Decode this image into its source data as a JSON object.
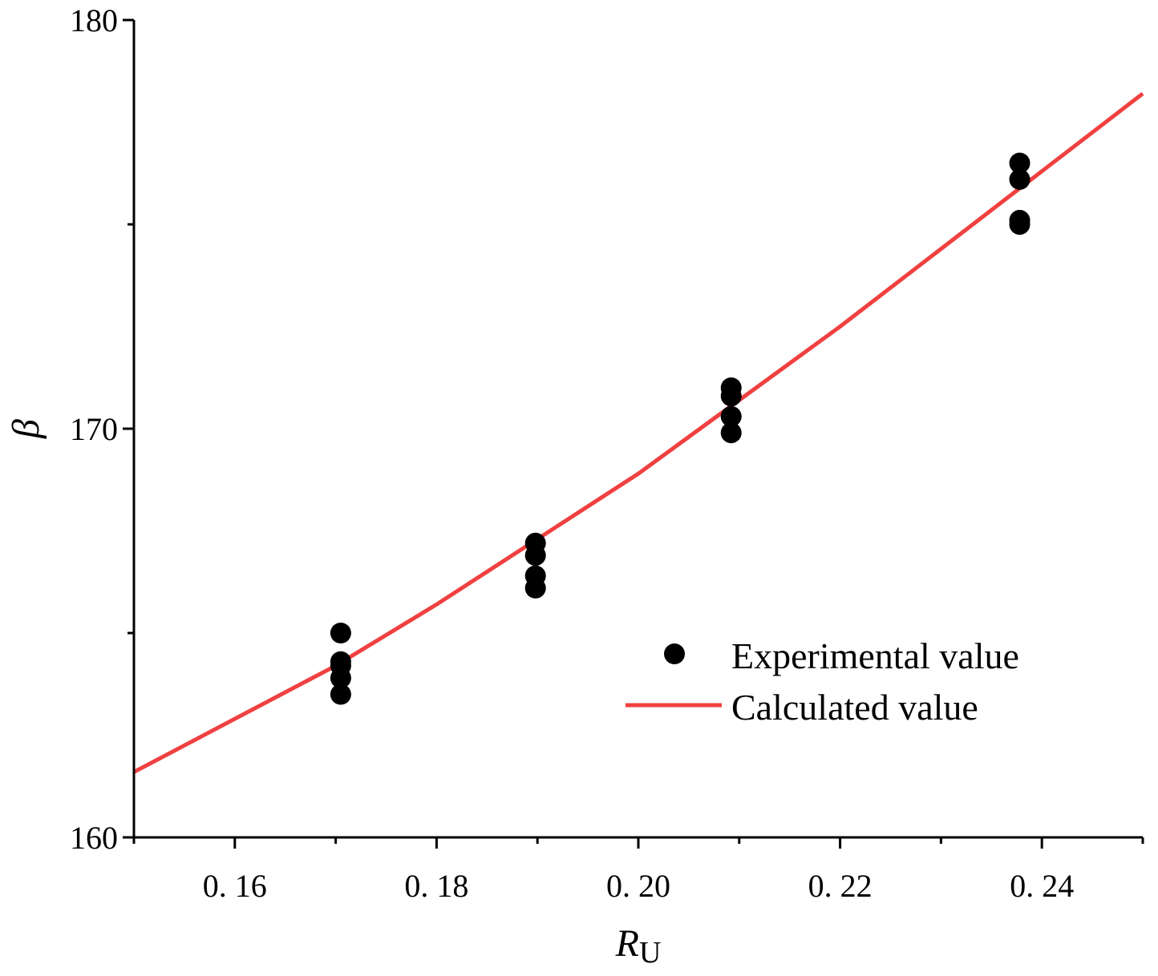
{
  "chart_data": {
    "type": "scatter",
    "title": "",
    "xlabel": "R",
    "xlabel_subscript": "U",
    "ylabel": "β",
    "xlim": [
      0.15,
      0.25
    ],
    "ylim": [
      160,
      180
    ],
    "x_ticks": [
      0.16,
      0.18,
      0.2,
      0.22,
      0.24
    ],
    "x_tick_labels": [
      "0. 16",
      "0. 18",
      "0. 20",
      "0. 22",
      "0. 24"
    ],
    "x_minor_ticks": [
      0.15,
      0.17,
      0.19,
      0.21,
      0.23,
      0.25
    ],
    "y_ticks": [
      160,
      170,
      180
    ],
    "y_tick_labels": [
      "160",
      "170",
      "180"
    ],
    "y_minor_ticks": [
      165,
      175
    ],
    "grid": false,
    "legend_position": "bottom-right",
    "series": [
      {
        "name": "Experimental value",
        "kind": "scatter",
        "color": "#000000",
        "points": [
          {
            "x": 0.1705,
            "y": 165.0
          },
          {
            "x": 0.1705,
            "y": 164.3
          },
          {
            "x": 0.1705,
            "y": 164.2
          },
          {
            "x": 0.1705,
            "y": 163.9
          },
          {
            "x": 0.1705,
            "y": 163.5
          },
          {
            "x": 0.1898,
            "y": 167.2
          },
          {
            "x": 0.1898,
            "y": 166.9
          },
          {
            "x": 0.1898,
            "y": 166.4
          },
          {
            "x": 0.1898,
            "y": 166.1
          },
          {
            "x": 0.2092,
            "y": 171.0
          },
          {
            "x": 0.2092,
            "y": 170.8
          },
          {
            "x": 0.2092,
            "y": 170.3
          },
          {
            "x": 0.2092,
            "y": 169.9
          },
          {
            "x": 0.2378,
            "y": 176.5
          },
          {
            "x": 0.2378,
            "y": 176.1
          },
          {
            "x": 0.2378,
            "y": 175.1
          },
          {
            "x": 0.2378,
            "y": 175.0
          }
        ]
      },
      {
        "name": "Calculated value",
        "kind": "line",
        "color": "#f04040",
        "points": [
          {
            "x": 0.15,
            "y": 161.6
          },
          {
            "x": 0.16,
            "y": 162.9
          },
          {
            "x": 0.17,
            "y": 164.2
          },
          {
            "x": 0.18,
            "y": 165.7
          },
          {
            "x": 0.19,
            "y": 167.3
          },
          {
            "x": 0.2,
            "y": 168.9
          },
          {
            "x": 0.21,
            "y": 170.7
          },
          {
            "x": 0.22,
            "y": 172.5
          },
          {
            "x": 0.23,
            "y": 174.4
          },
          {
            "x": 0.24,
            "y": 176.3
          },
          {
            "x": 0.25,
            "y": 178.2
          }
        ]
      }
    ]
  }
}
